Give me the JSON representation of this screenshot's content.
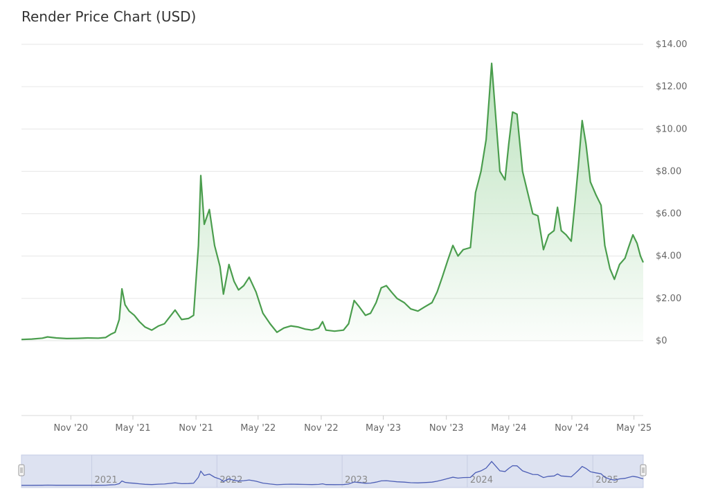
{
  "chart_data": {
    "type": "area",
    "title": "Render Price Chart (USD)",
    "ylabel": "",
    "xlabel": "",
    "ylim": [
      0,
      14
    ],
    "xlim": [
      "2020-06-10",
      "2025-05-28"
    ],
    "y_ticks": [
      "$0",
      "$2.00",
      "$4.00",
      "$6.00",
      "$8.00",
      "$10.00",
      "$12.00",
      "$14.00"
    ],
    "x_ticks": [
      {
        "label": "Nov '20",
        "date": "2020-11-01"
      },
      {
        "label": "May '21",
        "date": "2021-05-01"
      },
      {
        "label": "Nov '21",
        "date": "2021-11-01"
      },
      {
        "label": "May '22",
        "date": "2022-05-01"
      },
      {
        "label": "Nov '22",
        "date": "2022-11-01"
      },
      {
        "label": "May '23",
        "date": "2023-05-01"
      },
      {
        "label": "Nov '23",
        "date": "2023-11-01"
      },
      {
        "label": "May '24",
        "date": "2024-05-01"
      },
      {
        "label": "Nov '24",
        "date": "2024-11-01"
      },
      {
        "label": "May '25",
        "date": "2025-05-01"
      }
    ],
    "navigator_labels": [
      {
        "label": "2021",
        "date": "2021-01-01"
      },
      {
        "label": "2022",
        "date": "2022-01-01"
      },
      {
        "label": "2023",
        "date": "2023-01-01"
      },
      {
        "label": "2024",
        "date": "2024-01-01"
      },
      {
        "label": "2025",
        "date": "2025-01-01"
      }
    ],
    "grid": true,
    "y_axis_position": "right",
    "colors": {
      "line": "#4a9d4d",
      "fill": "#6abf6e",
      "navigator_line": "#4b5db5",
      "navigator_bg": "#dde2f1"
    },
    "series": [
      {
        "points": [
          [
            "2020-06-10",
            0.06
          ],
          [
            "2020-07-10",
            0.08
          ],
          [
            "2020-08-10",
            0.12
          ],
          [
            "2020-08-25",
            0.18
          ],
          [
            "2020-09-20",
            0.13
          ],
          [
            "2020-10-20",
            0.1
          ],
          [
            "2020-11-20",
            0.11
          ],
          [
            "2020-12-20",
            0.13
          ],
          [
            "2021-01-20",
            0.12
          ],
          [
            "2021-02-10",
            0.15
          ],
          [
            "2021-02-25",
            0.3
          ],
          [
            "2021-03-10",
            0.4
          ],
          [
            "2021-03-22",
            1.0
          ],
          [
            "2021-03-30",
            2.45
          ],
          [
            "2021-04-08",
            1.7
          ],
          [
            "2021-04-20",
            1.4
          ],
          [
            "2021-05-05",
            1.2
          ],
          [
            "2021-05-20",
            0.9
          ],
          [
            "2021-06-05",
            0.65
          ],
          [
            "2021-06-25",
            0.5
          ],
          [
            "2021-07-15",
            0.7
          ],
          [
            "2021-08-01",
            0.8
          ],
          [
            "2021-08-15",
            1.1
          ],
          [
            "2021-09-01",
            1.45
          ],
          [
            "2021-09-20",
            1.0
          ],
          [
            "2021-10-10",
            1.05
          ],
          [
            "2021-10-25",
            1.2
          ],
          [
            "2021-11-08",
            4.5
          ],
          [
            "2021-11-15",
            7.8
          ],
          [
            "2021-11-25",
            5.5
          ],
          [
            "2021-12-10",
            6.2
          ],
          [
            "2021-12-25",
            4.5
          ],
          [
            "2022-01-10",
            3.5
          ],
          [
            "2022-01-20",
            2.2
          ],
          [
            "2022-02-05",
            3.6
          ],
          [
            "2022-02-20",
            2.8
          ],
          [
            "2022-03-05",
            2.4
          ],
          [
            "2022-03-20",
            2.6
          ],
          [
            "2022-04-05",
            3.0
          ],
          [
            "2022-04-25",
            2.3
          ],
          [
            "2022-05-15",
            1.3
          ],
          [
            "2022-06-05",
            0.8
          ],
          [
            "2022-06-25",
            0.4
          ],
          [
            "2022-07-15",
            0.6
          ],
          [
            "2022-08-05",
            0.7
          ],
          [
            "2022-08-25",
            0.65
          ],
          [
            "2022-09-15",
            0.55
          ],
          [
            "2022-10-05",
            0.5
          ],
          [
            "2022-10-25",
            0.6
          ],
          [
            "2022-11-05",
            0.9
          ],
          [
            "2022-11-15",
            0.5
          ],
          [
            "2022-12-10",
            0.45
          ],
          [
            "2023-01-05",
            0.5
          ],
          [
            "2023-01-20",
            0.8
          ],
          [
            "2023-02-05",
            1.9
          ],
          [
            "2023-02-20",
            1.6
          ],
          [
            "2023-03-10",
            1.2
          ],
          [
            "2023-03-25",
            1.3
          ],
          [
            "2023-04-10",
            1.8
          ],
          [
            "2023-04-25",
            2.5
          ],
          [
            "2023-05-10",
            2.6
          ],
          [
            "2023-05-25",
            2.3
          ],
          [
            "2023-06-10",
            2.0
          ],
          [
            "2023-07-01",
            1.8
          ],
          [
            "2023-07-20",
            1.5
          ],
          [
            "2023-08-10",
            1.4
          ],
          [
            "2023-08-30",
            1.6
          ],
          [
            "2023-09-20",
            1.8
          ],
          [
            "2023-10-05",
            2.3
          ],
          [
            "2023-10-20",
            3.0
          ],
          [
            "2023-11-05",
            3.8
          ],
          [
            "2023-11-20",
            4.5
          ],
          [
            "2023-12-05",
            4.0
          ],
          [
            "2023-12-20",
            4.3
          ],
          [
            "2024-01-10",
            4.4
          ],
          [
            "2024-01-25",
            7.0
          ],
          [
            "2024-02-10",
            8.0
          ],
          [
            "2024-02-25",
            9.5
          ],
          [
            "2024-03-05",
            11.5
          ],
          [
            "2024-03-12",
            13.1
          ],
          [
            "2024-03-22",
            11.0
          ],
          [
            "2024-04-05",
            8.0
          ],
          [
            "2024-04-20",
            7.6
          ],
          [
            "2024-05-01",
            9.3
          ],
          [
            "2024-05-12",
            10.8
          ],
          [
            "2024-05-25",
            10.7
          ],
          [
            "2024-06-10",
            8.0
          ],
          [
            "2024-06-25",
            7.0
          ],
          [
            "2024-07-10",
            6.0
          ],
          [
            "2024-07-25",
            5.9
          ],
          [
            "2024-08-10",
            4.3
          ],
          [
            "2024-08-25",
            5.0
          ],
          [
            "2024-09-10",
            5.2
          ],
          [
            "2024-09-20",
            6.3
          ],
          [
            "2024-10-01",
            5.2
          ],
          [
            "2024-10-15",
            5.0
          ],
          [
            "2024-10-30",
            4.7
          ],
          [
            "2024-11-10",
            6.5
          ],
          [
            "2024-11-20",
            8.3
          ],
          [
            "2024-12-01",
            10.4
          ],
          [
            "2024-12-12",
            9.3
          ],
          [
            "2024-12-25",
            7.5
          ],
          [
            "2025-01-10",
            6.9
          ],
          [
            "2025-01-25",
            6.4
          ],
          [
            "2025-02-05",
            4.5
          ],
          [
            "2025-02-20",
            3.4
          ],
          [
            "2025-03-05",
            2.9
          ],
          [
            "2025-03-20",
            3.6
          ],
          [
            "2025-04-05",
            3.9
          ],
          [
            "2025-04-15",
            4.4
          ],
          [
            "2025-04-28",
            5.0
          ],
          [
            "2025-05-10",
            4.6
          ],
          [
            "2025-05-20",
            4.0
          ],
          [
            "2025-05-28",
            3.7
          ]
        ]
      }
    ]
  }
}
